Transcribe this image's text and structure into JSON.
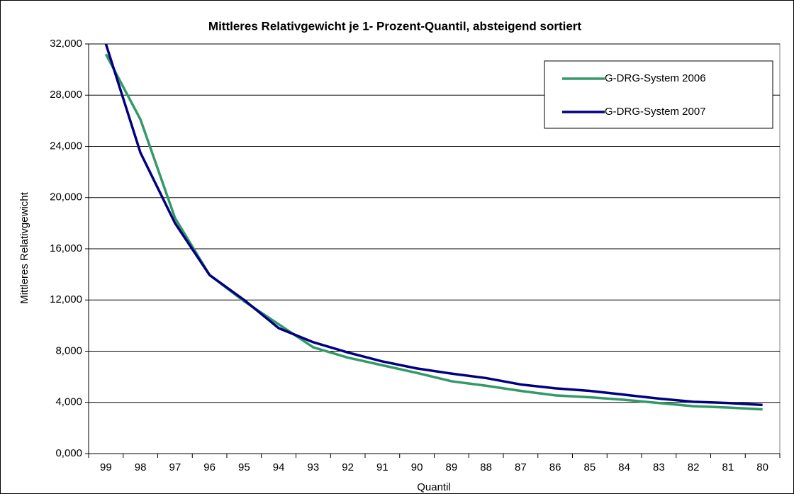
{
  "chart_data": {
    "type": "line",
    "title": "Mittleres Relativgewicht je 1- Prozent-Quantil, absteigend sortiert",
    "x_label": "Quantil",
    "y_label": "Mittleres Relativgewicht",
    "categories": [
      "99",
      "98",
      "97",
      "96",
      "95",
      "94",
      "93",
      "92",
      "91",
      "90",
      "89",
      "88",
      "87",
      "86",
      "85",
      "84",
      "83",
      "82",
      "81",
      "80"
    ],
    "series": [
      {
        "name": "G-DRG-System 2006",
        "color": "#339966",
        "values": [
          31.2,
          26.1,
          18.4,
          13.95,
          11.9,
          10.1,
          8.3,
          7.5,
          6.9,
          6.3,
          5.65,
          5.3,
          4.9,
          4.55,
          4.4,
          4.2,
          3.95,
          3.7,
          3.6,
          3.45
        ]
      },
      {
        "name": "G-DRG-System 2007",
        "color": "#000080",
        "values": [
          32.0,
          23.5,
          18.0,
          13.95,
          12.0,
          9.8,
          8.7,
          7.9,
          7.2,
          6.65,
          6.25,
          5.9,
          5.4,
          5.1,
          4.9,
          4.6,
          4.3,
          4.05,
          3.95,
          3.8
        ]
      }
    ],
    "ylim": [
      0,
      32
    ],
    "yticks": [
      {
        "value": 0,
        "label": "0,000"
      },
      {
        "value": 4,
        "label": "4,000"
      },
      {
        "value": 8,
        "label": "8,000"
      },
      {
        "value": 12,
        "label": "12,000"
      },
      {
        "value": 16,
        "label": "16,000"
      },
      {
        "value": 20,
        "label": "20,000"
      },
      {
        "value": 24,
        "label": "24,000"
      },
      {
        "value": 28,
        "label": "28,000"
      },
      {
        "value": 32,
        "label": "32,000"
      }
    ],
    "grid": true,
    "legend": "upper right"
  }
}
